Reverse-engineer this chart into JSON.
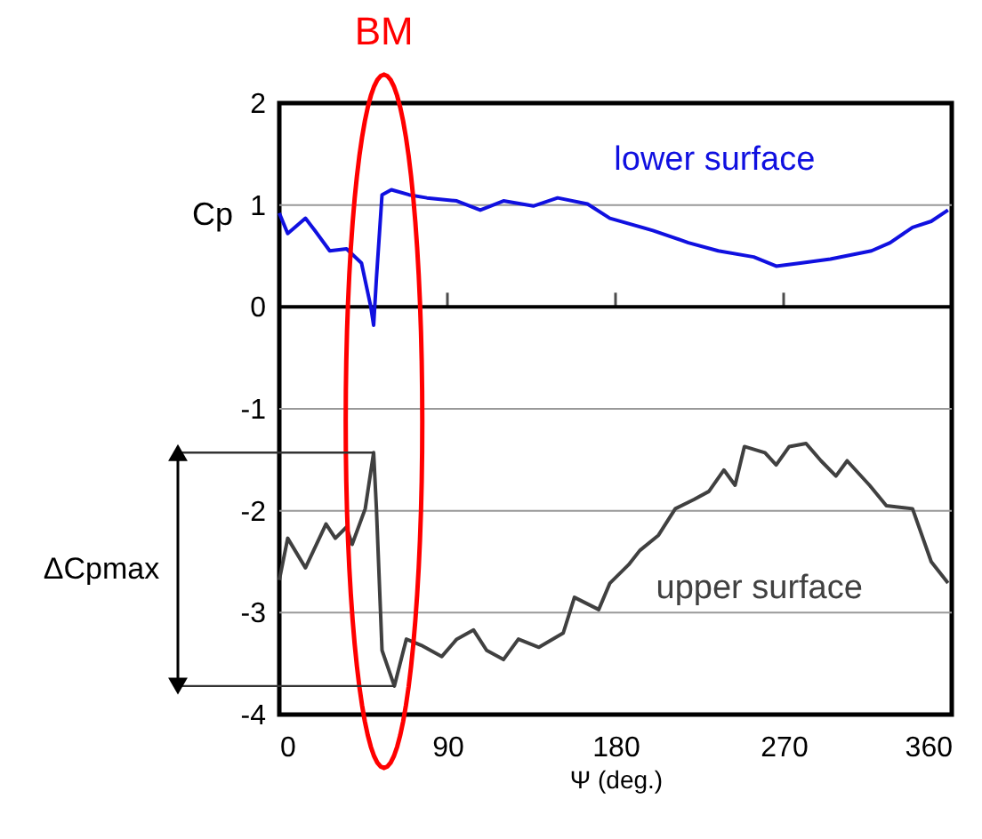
{
  "chart_data": {
    "type": "line",
    "xlabel": "Ψ (deg.)",
    "ylabel": "Cp",
    "xlim": [
      0,
      360
    ],
    "xticks": [
      0,
      90,
      180,
      270,
      360
    ],
    "ylim": [
      -4,
      2
    ],
    "yticks": [
      -4,
      -3,
      -2,
      -1,
      0,
      1,
      2
    ],
    "grid": "y",
    "legend": false,
    "marker": "none",
    "line_style": "solid",
    "ref_lines": [
      {
        "axis": "y",
        "value": 0,
        "color": "#000000"
      }
    ],
    "annotations": [
      "BM",
      "ΔCpmax"
    ],
    "series": [
      {
        "name": "lower surface",
        "color": "#1010e0",
        "x": [
          0,
          4.5,
          14,
          19,
          27,
          36,
          44,
          49,
          50.5,
          52,
          55,
          60,
          69.5,
          79,
          95,
          107.6,
          120,
          136,
          149,
          165,
          177,
          200,
          219,
          235,
          254,
          266,
          279,
          295,
          317,
          327,
          339,
          349,
          358
        ],
        "values": [
          0.92,
          0.72,
          0.87,
          0.75,
          0.55,
          0.57,
          0.43,
          0,
          -0.18,
          0.28,
          1.1,
          1.15,
          1.1,
          1.07,
          1.04,
          0.95,
          1.04,
          0.99,
          1.07,
          1.01,
          0.87,
          0.75,
          0.63,
          0.55,
          0.49,
          0.4,
          0.43,
          0.47,
          0.55,
          0.63,
          0.78,
          0.84,
          0.95
        ]
      },
      {
        "name": "upper surface",
        "color": "#404040",
        "x": [
          0,
          4.5,
          14,
          25,
          30,
          36,
          39,
          46,
          50.5,
          52,
          55,
          61.6,
          68,
          76,
          87,
          95,
          104,
          111,
          120,
          128,
          139,
          152,
          158,
          171,
          177,
          187,
          193,
          203,
          212,
          222,
          230,
          238,
          244,
          249,
          260,
          266,
          273,
          282,
          290,
          298,
          304,
          316,
          325,
          339,
          349,
          358
        ],
        "values": [
          -2.68,
          -2.27,
          -2.56,
          -2.13,
          -2.27,
          -2.16,
          -2.33,
          -1.98,
          -1.43,
          -1.98,
          -3.37,
          -3.72,
          -3.26,
          -3.32,
          -3.43,
          -3.26,
          -3.17,
          -3.37,
          -3.46,
          -3.26,
          -3.34,
          -3.2,
          -2.85,
          -2.97,
          -2.71,
          -2.53,
          -2.39,
          -2.24,
          -1.98,
          -1.89,
          -1.81,
          -1.6,
          -1.75,
          -1.37,
          -1.43,
          -1.55,
          -1.37,
          -1.34,
          -1.51,
          -1.66,
          -1.51,
          -1.75,
          -1.95,
          -1.98,
          -2.5,
          -2.71
        ]
      }
    ]
  }
}
